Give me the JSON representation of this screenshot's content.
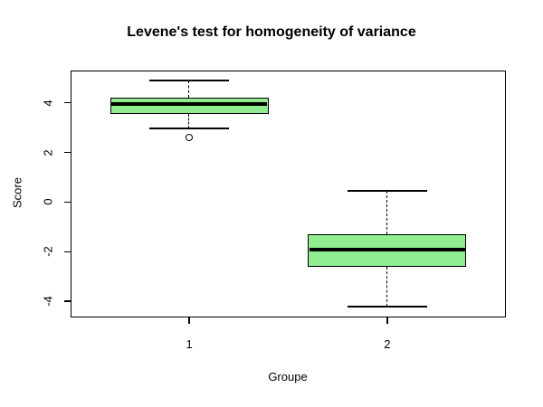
{
  "chart_data": {
    "type": "boxplot",
    "title": "Levene's test for homogeneity of variance",
    "xlabel": "Groupe",
    "ylabel": "Score",
    "categories": [
      "1",
      "2"
    ],
    "yticks": [
      4,
      2,
      0,
      -2,
      -4
    ],
    "ylim": [
      -4.65,
      5.3
    ],
    "xlim": [
      0.4,
      2.6
    ],
    "box_width": 0.8,
    "box_fill": "#90EE90",
    "line_color": "#000000",
    "grid": false,
    "legend": null,
    "series": [
      {
        "group": "1",
        "x": 1,
        "whisker_low": 2.95,
        "q1": 3.55,
        "median": 3.95,
        "q3": 4.2,
        "whisker_high": 4.9,
        "outliers": [
          2.6
        ]
      },
      {
        "group": "2",
        "x": 2,
        "whisker_low": -4.2,
        "q1": -2.6,
        "median": -1.9,
        "q3": -1.3,
        "whisker_high": 0.45,
        "outliers": []
      }
    ]
  }
}
